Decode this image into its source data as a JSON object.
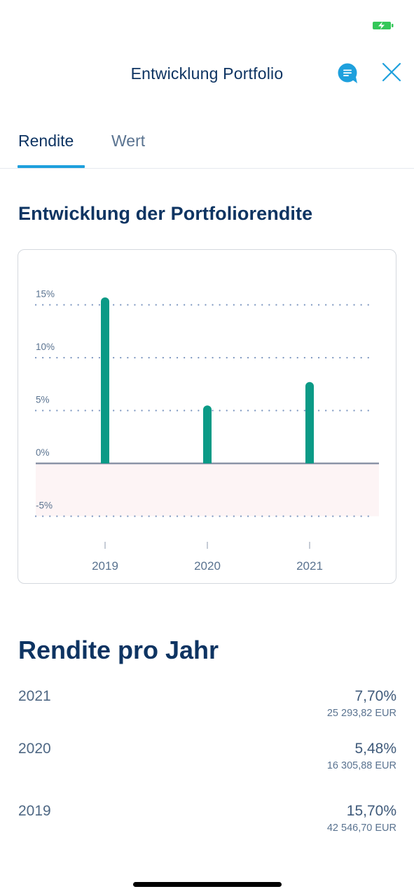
{
  "header": {
    "title": "Entwicklung Portfolio",
    "icons": {
      "chat": "chat-bubble-icon",
      "close": "close-icon"
    }
  },
  "tabs": [
    {
      "label": "Rendite",
      "active": true
    },
    {
      "label": "Wert",
      "active": false
    }
  ],
  "section_title": "Entwicklung der Portfoliorendite",
  "chart_data": {
    "type": "bar",
    "categories": [
      "2019",
      "2020",
      "2021"
    ],
    "values": [
      15.7,
      5.48,
      7.7
    ],
    "y_ticks": [
      15,
      10,
      5,
      0,
      -5
    ],
    "y_tick_labels": [
      "15%",
      "10%",
      "5%",
      "0%",
      "-5%"
    ],
    "ylim": [
      -5,
      16.5
    ],
    "grid": "dotted horizontal",
    "negative_region_shaded": true,
    "colors": {
      "bar": "#0b9a86",
      "grid": "#7d97c0",
      "zero_line": "#8a93a6",
      "negative_area": "#fdf4f5"
    }
  },
  "years_title": "Rendite pro Jahr",
  "years": [
    {
      "year": "2021",
      "pct": "7,70%",
      "eur": "25 293,82 EUR"
    },
    {
      "year": "2020",
      "pct": "5,48%",
      "eur": "16 305,88 EUR"
    },
    {
      "year": "2019",
      "pct": "15,70%",
      "eur": "42 546,70 EUR"
    }
  ],
  "colors": {
    "accent": "#1ea0dd",
    "primary_text": "#0e3462",
    "battery": "#34c759"
  }
}
